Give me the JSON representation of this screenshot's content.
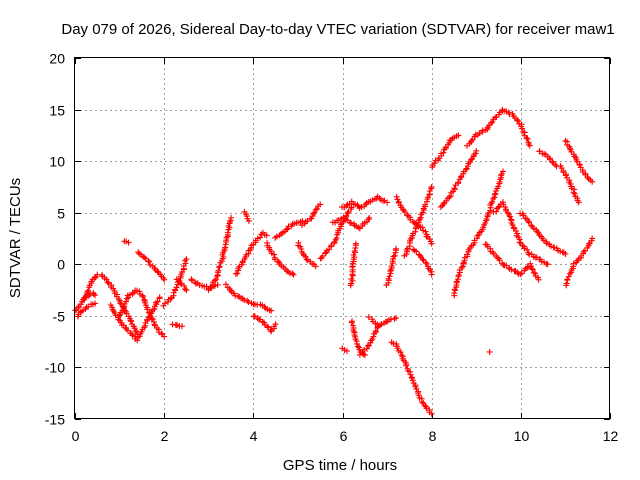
{
  "chart_data": {
    "type": "scatter",
    "title": "Day 079 of 2026, Sidereal Day-to-day VTEC variation (SDTVAR) for receiver maw1",
    "xlabel": "GPS time / hours",
    "ylabel": "SDTVAR / TECUs",
    "xlim": [
      0,
      12
    ],
    "ylim": [
      -15,
      20
    ],
    "xticks": [
      0,
      2,
      4,
      6,
      8,
      10,
      12
    ],
    "yticks": [
      -15,
      -10,
      -5,
      0,
      5,
      10,
      15,
      20
    ],
    "grid": true,
    "marker": "+",
    "color": "#ff0000",
    "series": [
      {
        "name": "s1",
        "x": [
          0.0,
          0.1,
          0.2,
          0.3,
          0.4,
          0.45
        ],
        "y": [
          -4.5,
          -4.0,
          -3.3,
          -3.0,
          -2.8,
          -3.0
        ]
      },
      {
        "name": "s2",
        "x": [
          0.05,
          0.15,
          0.25,
          0.35,
          0.45
        ],
        "y": [
          -5.0,
          -4.6,
          -4.2,
          -3.9,
          -3.8
        ]
      },
      {
        "name": "s3",
        "x": [
          0.2,
          0.3,
          0.4,
          0.5
        ],
        "y": [
          -3.5,
          -2.5,
          -1.5,
          -1.0
        ]
      },
      {
        "name": "s4",
        "x": [
          0.6,
          0.8,
          1.0,
          1.2,
          1.4
        ],
        "y": [
          -1.0,
          -2.0,
          -3.5,
          -5.0,
          -6.8
        ]
      },
      {
        "name": "s5",
        "x": [
          0.8,
          1.0,
          1.2,
          1.4,
          1.5,
          1.7,
          1.9
        ],
        "y": [
          -4.0,
          -5.5,
          -6.5,
          -7.3,
          -6.5,
          -4.8,
          -3.2
        ]
      },
      {
        "name": "s6",
        "x": [
          1.0,
          1.2,
          1.4,
          1.5,
          1.6,
          1.8,
          2.0
        ],
        "y": [
          -5.0,
          -3.0,
          -2.5,
          -3.0,
          -4.0,
          -6.0,
          -7.0
        ]
      },
      {
        "name": "s7",
        "x": [
          1.1,
          1.2
        ],
        "y": [
          2.3,
          2.1
        ]
      },
      {
        "name": "s8",
        "x": [
          1.4,
          1.6,
          1.8,
          2.0
        ],
        "y": [
          1.2,
          0.5,
          -0.5,
          -1.5
        ]
      },
      {
        "name": "s9",
        "x": [
          2.0,
          2.2,
          2.3,
          2.4,
          2.5
        ],
        "y": [
          -4.0,
          -3.0,
          -2.0,
          -1.0,
          0.5
        ]
      },
      {
        "name": "s10",
        "x": [
          2.2,
          2.4
        ],
        "y": [
          -5.8,
          -6.0
        ]
      },
      {
        "name": "s11",
        "x": [
          2.3,
          2.4,
          2.5
        ],
        "y": [
          -1.5,
          -2.0,
          -2.5
        ]
      },
      {
        "name": "s12",
        "x": [
          2.6,
          2.8,
          3.0,
          3.2
        ],
        "y": [
          -1.5,
          -2.0,
          -2.3,
          -2.0
        ]
      },
      {
        "name": "s13",
        "x": [
          3.0,
          3.2,
          3.3,
          3.4,
          3.5
        ],
        "y": [
          -2.5,
          -1.0,
          0.5,
          2.5,
          4.5
        ]
      },
      {
        "name": "s14",
        "x": [
          3.8,
          3.9
        ],
        "y": [
          5.0,
          4.2
        ]
      },
      {
        "name": "s15",
        "x": [
          3.4,
          3.6,
          3.8,
          4.0,
          4.2,
          4.4
        ],
        "y": [
          -2.0,
          -3.0,
          -3.5,
          -3.8,
          -4.0,
          -4.5
        ]
      },
      {
        "name": "s16",
        "x": [
          3.6,
          3.8,
          4.0,
          4.2,
          4.3
        ],
        "y": [
          -1.0,
          0.5,
          2.0,
          3.0,
          2.8
        ]
      },
      {
        "name": "s17",
        "x": [
          4.0,
          4.2,
          4.4,
          4.5
        ],
        "y": [
          -5.0,
          -5.5,
          -6.5,
          -5.8
        ]
      },
      {
        "name": "s18",
        "x": [
          4.3,
          4.5,
          4.7,
          4.9
        ],
        "y": [
          2.0,
          0.5,
          -0.5,
          -1.0
        ]
      },
      {
        "name": "s19",
        "x": [
          4.5,
          4.7,
          4.9,
          5.1
        ],
        "y": [
          2.5,
          3.2,
          4.0,
          4.2
        ]
      },
      {
        "name": "s20",
        "x": [
          5.0,
          5.2,
          5.4
        ],
        "y": [
          2.0,
          0.5,
          -0.2
        ]
      },
      {
        "name": "s21",
        "x": [
          5.1,
          5.3,
          5.5
        ],
        "y": [
          3.8,
          4.5,
          5.8
        ]
      },
      {
        "name": "s22",
        "x": [
          5.5,
          5.8,
          6.0,
          6.2
        ],
        "y": [
          0.5,
          2.0,
          4.0,
          5.5
        ]
      },
      {
        "name": "s23",
        "x": [
          5.8,
          6.0,
          6.2,
          6.4,
          6.6
        ],
        "y": [
          4.0,
          4.5,
          4.0,
          3.5,
          4.5
        ]
      },
      {
        "name": "s24",
        "x": [
          6.0,
          6.2,
          6.4,
          6.6,
          6.8,
          7.0
        ],
        "y": [
          5.5,
          6.0,
          5.5,
          6.0,
          6.5,
          6.0
        ]
      },
      {
        "name": "s25",
        "x": [
          6.2,
          6.3,
          6.4,
          6.5
        ],
        "y": [
          -5.5,
          -7.5,
          -8.5,
          -8.8
        ]
      },
      {
        "name": "s26",
        "x": [
          6.0,
          6.1
        ],
        "y": [
          -8.2,
          -8.4
        ]
      },
      {
        "name": "s27",
        "x": [
          6.2,
          6.25,
          6.3
        ],
        "y": [
          -2.0,
          0.5,
          2.0
        ]
      },
      {
        "name": "s28",
        "x": [
          6.4,
          6.6,
          6.8,
          7.0,
          7.2
        ],
        "y": [
          -8.8,
          -7.8,
          -6.0,
          -5.5,
          -5.2
        ]
      },
      {
        "name": "s29",
        "x": [
          6.6,
          6.7,
          6.8
        ],
        "y": [
          -5.2,
          -5.5,
          -6.0
        ]
      },
      {
        "name": "s30",
        "x": [
          7.0,
          7.1,
          7.2
        ],
        "y": [
          -2.0,
          -0.5,
          1.5
        ]
      },
      {
        "name": "s31",
        "x": [
          7.1,
          7.2,
          7.4,
          7.6,
          7.8,
          8.0
        ],
        "y": [
          -7.5,
          -7.8,
          -9.5,
          -11.5,
          -13.5,
          -14.5
        ]
      },
      {
        "name": "s32",
        "x": [
          7.4,
          7.6,
          7.8,
          8.0
        ],
        "y": [
          0.8,
          3.0,
          5.0,
          7.5
        ]
      },
      {
        "name": "s33",
        "x": [
          7.2,
          7.4,
          7.6,
          7.8,
          8.0
        ],
        "y": [
          6.5,
          5.0,
          4.0,
          3.5,
          2.0
        ]
      },
      {
        "name": "s34",
        "x": [
          7.6,
          7.8,
          7.9,
          8.0
        ],
        "y": [
          1.5,
          0.5,
          0.0,
          -1.0
        ]
      },
      {
        "name": "s35",
        "x": [
          8.0,
          8.2,
          8.4,
          8.6
        ],
        "y": [
          9.5,
          10.5,
          12.0,
          12.5
        ]
      },
      {
        "name": "s36",
        "x": [
          8.2,
          8.4,
          8.6,
          8.8,
          9.0
        ],
        "y": [
          5.5,
          6.5,
          8.0,
          9.5,
          11.0
        ]
      },
      {
        "name": "s37",
        "x": [
          8.5,
          8.6,
          8.8,
          9.0,
          9.2,
          9.4,
          9.6
        ],
        "y": [
          -3.0,
          -1.0,
          1.0,
          2.5,
          4.0,
          6.5,
          9.0
        ]
      },
      {
        "name": "s38",
        "x": [
          8.8,
          9.0,
          9.2,
          9.4,
          9.6,
          9.8,
          10.0,
          10.2
        ],
        "y": [
          11.5,
          12.5,
          13.0,
          14.0,
          15.0,
          14.5,
          13.5,
          11.5
        ]
      },
      {
        "name": "s39",
        "x": [
          9.2,
          9.4,
          9.6,
          9.8,
          10.0,
          10.2,
          10.4
        ],
        "y": [
          2.0,
          1.0,
          0.0,
          -0.5,
          -1.0,
          0.0,
          -1.5
        ]
      },
      {
        "name": "s40",
        "x": [
          9.3
        ],
        "y": [
          -8.5
        ]
      },
      {
        "name": "s41",
        "x": [
          9.4,
          9.6,
          9.8,
          10.0,
          10.2,
          10.4,
          10.6
        ],
        "y": [
          5.0,
          6.0,
          4.0,
          2.0,
          1.0,
          0.5,
          0.0
        ]
      },
      {
        "name": "s42",
        "x": [
          10.0,
          10.2,
          10.4,
          10.6,
          10.8,
          11.0
        ],
        "y": [
          5.0,
          4.0,
          3.0,
          2.0,
          1.5,
          1.0
        ]
      },
      {
        "name": "s43",
        "x": [
          10.4,
          10.6,
          10.8
        ],
        "y": [
          11.0,
          10.5,
          9.5
        ]
      },
      {
        "name": "s44",
        "x": [
          11.0,
          11.2,
          11.4,
          11.6
        ],
        "y": [
          12.0,
          10.5,
          9.0,
          8.0
        ]
      },
      {
        "name": "s45",
        "x": [
          11.0,
          11.2,
          11.4,
          11.6
        ],
        "y": [
          -2.0,
          0.0,
          1.0,
          2.5
        ]
      },
      {
        "name": "s46",
        "x": [
          10.9,
          11.1,
          11.3
        ],
        "y": [
          9.5,
          8.0,
          6.0
        ]
      }
    ]
  }
}
